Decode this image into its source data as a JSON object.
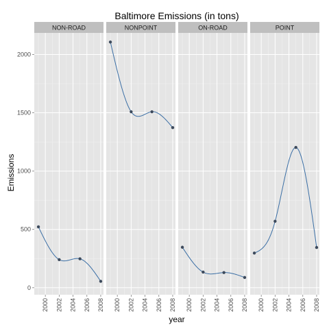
{
  "chart_data": {
    "type": "line",
    "title": "Baltimore Emissions (in tons)",
    "xlabel": "year",
    "ylabel": "Emissions",
    "x": [
      1999,
      2002,
      2005,
      2008
    ],
    "xlim": [
      1998.4,
      2008.4
    ],
    "ylim": [
      -60,
      2185
    ],
    "xticks": [
      2000,
      2002,
      2004,
      2006,
      2008
    ],
    "xtick_labels": [
      "2000",
      "2002",
      "2004",
      "2006",
      "2008"
    ],
    "yticks": [
      0,
      500,
      1000,
      1500,
      2000
    ],
    "ytick_labels": [
      "0",
      "500",
      "1000",
      "1500",
      "2000"
    ],
    "grid": true,
    "series_color": "#3a6ea5",
    "point_color": "#3d4a5c",
    "panel_bg": "#e5e5e5",
    "strip_bg": "#bfbfbf",
    "panels": [
      {
        "name": "NON-ROAD",
        "values": [
          522,
          241,
          248,
          55
        ]
      },
      {
        "name": "NONPOINT",
        "values": [
          2107,
          1509,
          1509,
          1373
        ]
      },
      {
        "name": "ON-ROAD",
        "values": [
          347,
          134,
          130,
          88
        ]
      },
      {
        "name": "POINT",
        "values": [
          297,
          570,
          1203,
          345
        ]
      }
    ]
  }
}
